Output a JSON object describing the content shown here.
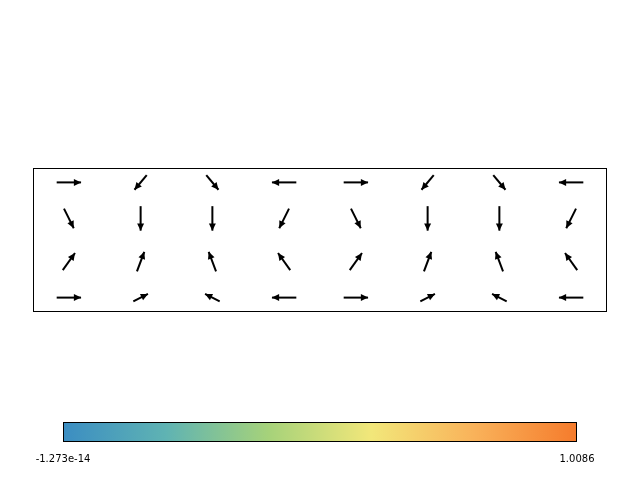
{
  "chart_data": {
    "type": "quiver",
    "xlim": [
      0,
      4
    ],
    "ylim": [
      0,
      1
    ],
    "tick_labels": false,
    "grid": false,
    "color": "#000000",
    "arrows": {
      "x": [
        0.25,
        0.75,
        1.25,
        1.75,
        2.25,
        2.75,
        3.25,
        3.75,
        0.25,
        0.75,
        1.25,
        1.75,
        2.25,
        2.75,
        3.25,
        3.75,
        0.25,
        0.75,
        1.25,
        1.75,
        2.25,
        2.75,
        3.25,
        3.75,
        0.25,
        0.75,
        1.25,
        1.75,
        2.25,
        2.75,
        3.25,
        3.75
      ],
      "y": [
        0.9,
        0.9,
        0.9,
        0.9,
        0.9,
        0.9,
        0.9,
        0.9,
        0.65,
        0.65,
        0.65,
        0.65,
        0.65,
        0.65,
        0.65,
        0.65,
        0.35,
        0.35,
        0.35,
        0.35,
        0.35,
        0.35,
        0.35,
        0.35,
        0.1,
        0.1,
        0.1,
        0.1,
        0.1,
        0.1,
        0.1,
        0.1
      ],
      "u": [
        1,
        -0.5,
        0.5,
        -1,
        1,
        -0.5,
        0.5,
        -1,
        0.4,
        0,
        0,
        -0.4,
        0.4,
        0,
        0,
        -0.4,
        0.5,
        0.3,
        -0.3,
        -0.5,
        0.5,
        0.3,
        -0.3,
        -0.5,
        1,
        0.6,
        -0.6,
        -1,
        1,
        0.6,
        -0.6,
        -1
      ],
      "v": [
        0,
        -0.6,
        -0.6,
        0,
        0,
        -0.6,
        -0.6,
        0,
        -0.8,
        -1,
        -1,
        -0.8,
        -0.8,
        -1,
        -1,
        -0.8,
        0.7,
        0.8,
        0.8,
        0.7,
        0.7,
        0.8,
        0.8,
        0.7,
        0,
        0.3,
        0.3,
        0,
        0,
        0.3,
        0.3,
        0
      ]
    },
    "colorbar": {
      "range": [
        -1.273e-14,
        1.0086
      ],
      "ticks": [
        {
          "value": -1.273e-14,
          "label": "-1.273e-14"
        },
        {
          "value": 1.0086,
          "label": "1.0086"
        }
      ],
      "colors": [
        "#3b8dc2",
        "#5fb3b3",
        "#a6d27a",
        "#f2e77a",
        "#f9b25a",
        "#f57b2c"
      ]
    }
  }
}
